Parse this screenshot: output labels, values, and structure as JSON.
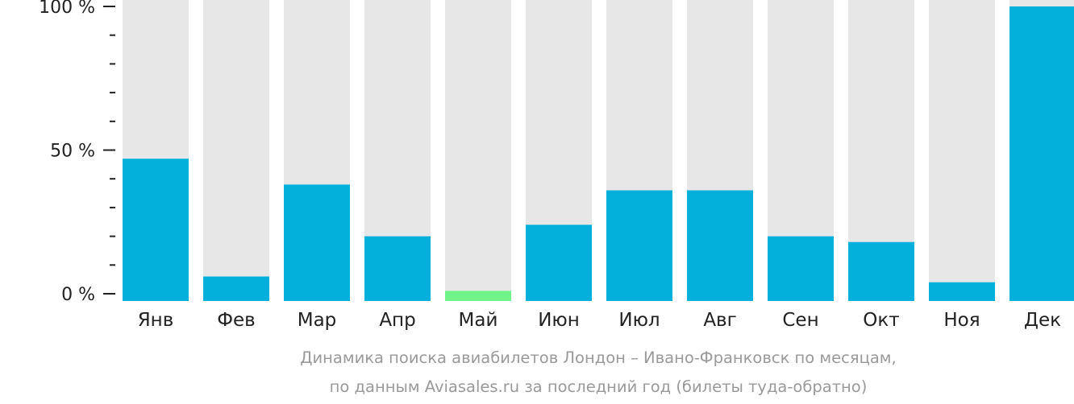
{
  "chart_data": {
    "type": "bar",
    "categories": [
      "Янв",
      "Фев",
      "Мар",
      "Апр",
      "Май",
      "Июн",
      "Июл",
      "Авг",
      "Сен",
      "Окт",
      "Ноя",
      "Дек"
    ],
    "values": [
      47,
      6,
      38,
      20,
      1,
      24,
      36,
      36,
      20,
      18,
      4,
      100
    ],
    "ylim": [
      0,
      100
    ],
    "yticks": [
      {
        "value": 100,
        "label": "100 %"
      },
      {
        "value": 50,
        "label": "50 %"
      },
      {
        "value": 0,
        "label": "0 %"
      }
    ],
    "yminor_ticks": [
      10,
      20,
      30,
      40,
      60,
      70,
      80,
      90
    ],
    "highlight_index": 4,
    "colors": {
      "bar": "#03b0dc",
      "highlight": "#71f387",
      "background_bar": "#e7e7e7",
      "axis": "#222222",
      "caption": "#9a9a9a"
    },
    "caption": [
      "Динамика поиска авиабилетов Лондон – Ивано-Франковск по месяцам,",
      "по данным Aviasales.ru за последний год (билеты туда-обратно)"
    ]
  }
}
